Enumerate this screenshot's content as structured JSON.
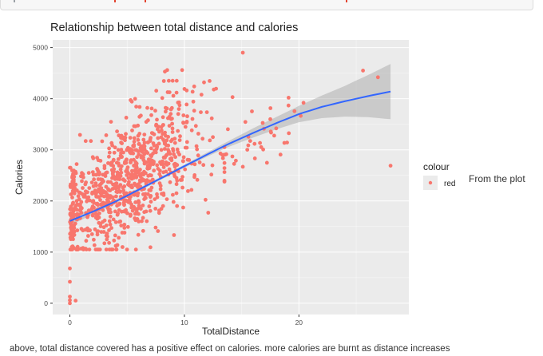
{
  "chart_data": {
    "type": "scatter",
    "title": "Relationship between total distance and calories",
    "xlabel": "TotalDistance",
    "ylabel": "Calories",
    "xlim": [
      -1.5,
      29.6
    ],
    "ylim": [
      -220,
      5150
    ],
    "x_ticks": [
      0,
      10,
      20
    ],
    "y_ticks": [
      0,
      1000,
      2000,
      3000,
      4000,
      5000
    ],
    "grid": true,
    "legend": {
      "title": "colour",
      "entries": [
        "red"
      ],
      "position": "right"
    },
    "colors": {
      "points": "#f8766d",
      "smooth_line": "#3366ff",
      "ribbon": "#999999",
      "panel": "#ebebeb",
      "grid": "#ffffff"
    },
    "smooth": {
      "method": "loess",
      "x": [
        0,
        2,
        4,
        6,
        8,
        10,
        12,
        14,
        16,
        18,
        20,
        22,
        24,
        26,
        28
      ],
      "y": [
        1610,
        1790,
        1990,
        2220,
        2450,
        2680,
        2910,
        3130,
        3330,
        3520,
        3700,
        3840,
        3950,
        4050,
        4140
      ],
      "ci_upper": [
        1700,
        1840,
        2030,
        2250,
        2480,
        2710,
        2950,
        3190,
        3420,
        3640,
        3860,
        4060,
        4250,
        4460,
        4680
      ],
      "ci_lower": [
        1520,
        1740,
        1950,
        2190,
        2420,
        2650,
        2870,
        3070,
        3240,
        3400,
        3540,
        3620,
        3650,
        3640,
        3600
      ]
    },
    "scatter_summary": {
      "n_points": 940,
      "notable_points": [
        {
          "x": 0,
          "y": 0
        },
        {
          "x": 0,
          "y": 60
        },
        {
          "x": 0,
          "y": 130
        },
        {
          "x": 0,
          "y": 420
        },
        {
          "x": 0,
          "y": 680
        },
        {
          "x": 0.5,
          "y": 50
        },
        {
          "x": 0,
          "y": 2650
        },
        {
          "x": 8.3,
          "y": 4530
        },
        {
          "x": 8.5,
          "y": 4560
        },
        {
          "x": 9.8,
          "y": 4560
        },
        {
          "x": 15.1,
          "y": 4900
        },
        {
          "x": 25.6,
          "y": 4550
        },
        {
          "x": 26.9,
          "y": 4420
        },
        {
          "x": 28.0,
          "y": 2690
        },
        {
          "x": 15.1,
          "y": 2670
        },
        {
          "x": 19.1,
          "y": 4020
        },
        {
          "x": 20.4,
          "y": 3920
        },
        {
          "x": 17.5,
          "y": 3600
        },
        {
          "x": 14.2,
          "y": 4030
        }
      ]
    }
  },
  "side_note": "From the plot",
  "caption": "above, total distance covered has a positive effect on calories. more calories are burnt as distance increases"
}
